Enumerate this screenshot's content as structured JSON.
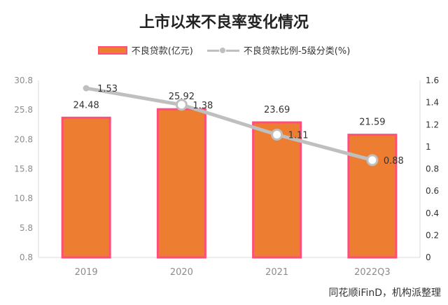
{
  "chart_data": {
    "type": "bar",
    "title": "上市以来不良率变化情况",
    "categories": [
      "2019",
      "2020",
      "2021",
      "2022Q3"
    ],
    "series": [
      {
        "name": "不良贷款(亿元)",
        "type": "bar",
        "axis": "left",
        "values": [
          24.48,
          25.92,
          23.69,
          21.59
        ]
      },
      {
        "name": "不良贷款比例-5级分类(%)",
        "type": "line",
        "axis": "right",
        "values": [
          1.53,
          1.38,
          1.11,
          0.88
        ]
      }
    ],
    "y_left": {
      "ticks": [
        30.8,
        25.8,
        20.8,
        15.8,
        10.8,
        5.8,
        0.8
      ],
      "ylim": [
        0.8,
        30.8
      ]
    },
    "y_right": {
      "ticks": [
        1.6,
        1.4,
        1.2,
        1,
        0.8,
        0.6,
        0.4,
        0.2,
        0
      ],
      "ylim": [
        0,
        1.6
      ]
    },
    "legend": "top",
    "grid": false,
    "colors": {
      "bar_fill": "#ED7D31",
      "bar_border": "#FF4F78",
      "line": "#BFBFBF"
    },
    "source_note": "同花顺iFinD，机构派整理"
  }
}
